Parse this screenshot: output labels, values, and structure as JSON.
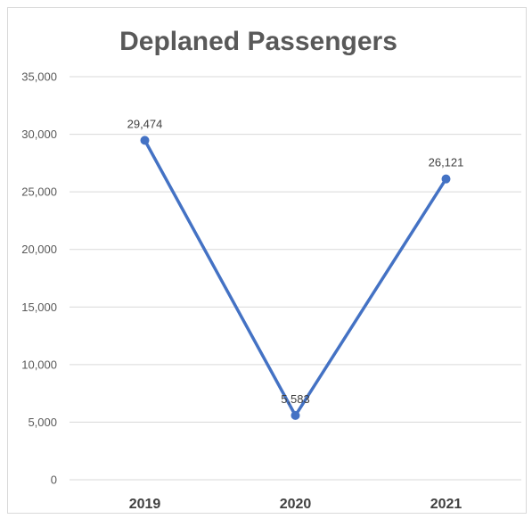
{
  "chart_data": {
    "type": "line",
    "title": "Deplaned Passengers",
    "xlabel": "",
    "ylabel": "",
    "categories": [
      "2019",
      "2020",
      "2021"
    ],
    "series": [
      {
        "values": [
          29474,
          5583,
          26121
        ]
      }
    ],
    "data_labels": [
      "29,474",
      "5,583",
      "26,121"
    ],
    "y_ticks": [
      "0",
      "5,000",
      "10,000",
      "15,000",
      "20,000",
      "25,000",
      "30,000",
      "35,000"
    ],
    "ylim": [
      0,
      35000
    ],
    "y_step": 5000,
    "grid": true,
    "legend": "none",
    "colors": {
      "line": "#4472c4",
      "grid": "#d9d9d9",
      "text": "#595959"
    }
  }
}
